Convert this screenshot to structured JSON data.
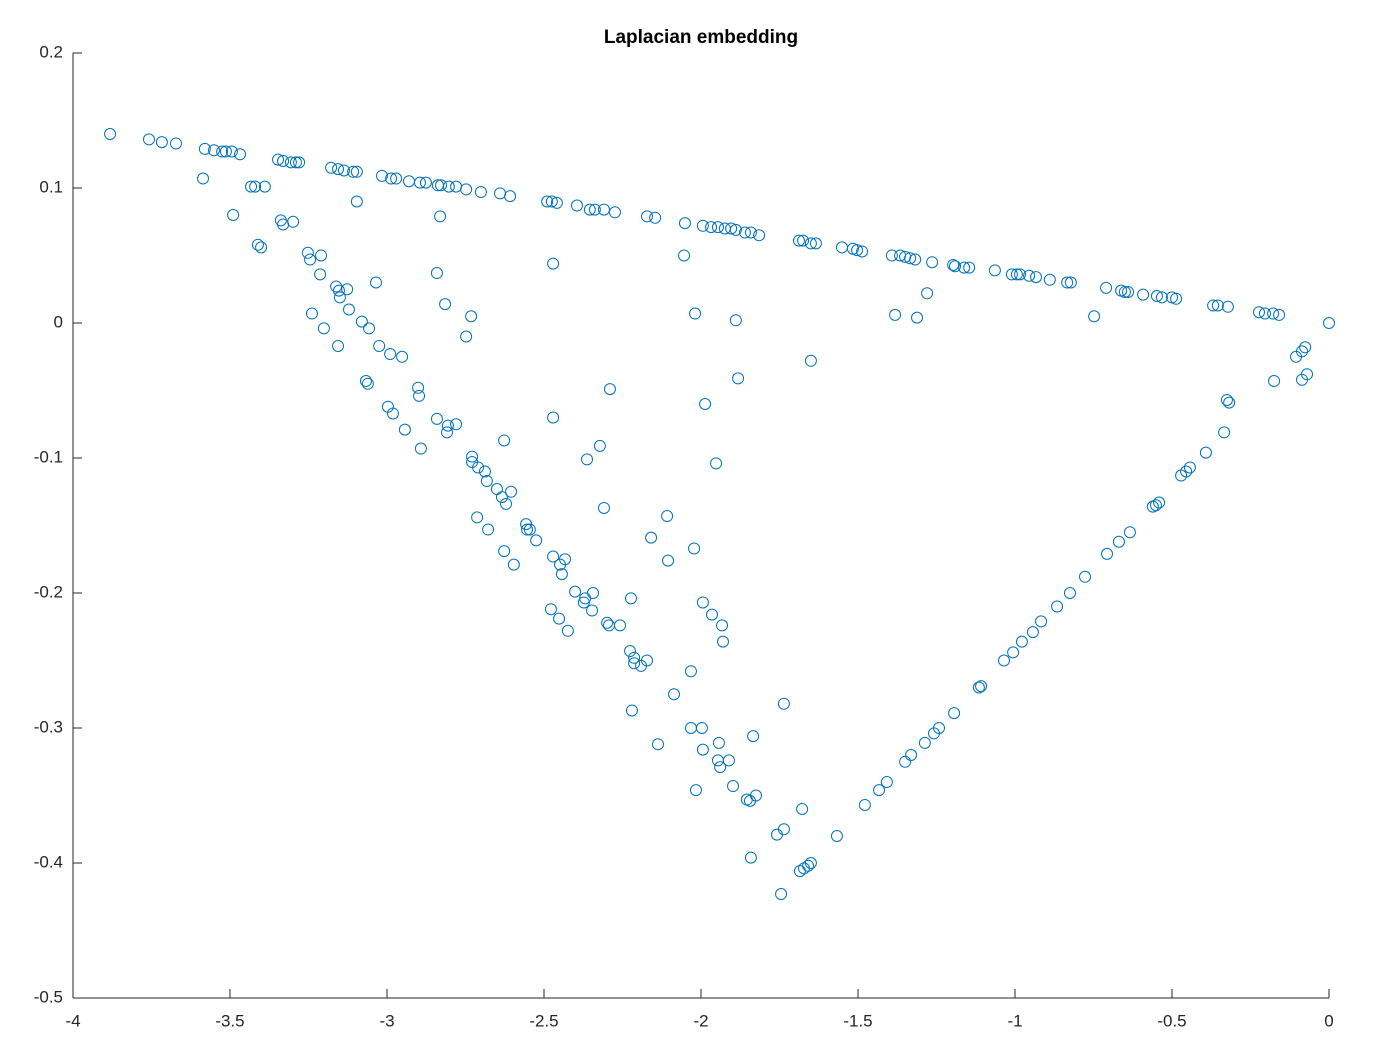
{
  "chart_data": {
    "type": "scatter",
    "title": "Laplacian embedding",
    "color": "#0072BD",
    "xlim": [
      -4,
      0
    ],
    "ylim": [
      -0.5,
      0.2
    ],
    "xticks": [
      -4,
      -3.5,
      -3,
      -2.5,
      -2,
      -1.5,
      -1,
      -0.5,
      0
    ],
    "yticks": [
      -0.5,
      -0.4,
      -0.3,
      -0.2,
      -0.1,
      0,
      0.1,
      0.2
    ],
    "x": [
      -3.882,
      -3.758,
      -3.717,
      -3.672,
      -3.58,
      -3.551,
      -3.525,
      -3.513,
      -3.494,
      -3.468,
      -3.347,
      -3.331,
      -3.306,
      -3.29,
      -3.28,
      -3.178,
      -3.156,
      -3.137,
      -3.108,
      -3.096,
      -3.016,
      -2.987,
      -2.971,
      -2.93,
      -2.895,
      -2.876,
      -2.838,
      -2.828,
      -2.803,
      -2.78,
      -2.748,
      -2.701,
      -2.64,
      -2.608,
      -2.49,
      -2.475,
      -2.459,
      -2.395,
      -2.354,
      -2.338,
      -2.309,
      -2.274,
      -2.172,
      -2.146,
      -2.051,
      -1.994,
      -1.968,
      -1.946,
      -1.924,
      -1.904,
      -1.889,
      -1.86,
      -1.841,
      -1.815,
      -1.688,
      -1.675,
      -1.65,
      -1.634,
      -1.551,
      -1.516,
      -1.503,
      -1.487,
      -1.392,
      -1.366,
      -1.35,
      -1.334,
      -1.318,
      -1.264,
      -1.197,
      -1.191,
      -1.162,
      -1.146,
      -1.064,
      -1.01,
      -0.994,
      -0.984,
      -0.955,
      -0.933,
      -0.889,
      -0.834,
      -0.822,
      -0.71,
      -0.662,
      -0.65,
      -0.64,
      -0.592,
      -0.548,
      -0.532,
      -0.5,
      -0.487,
      -0.369,
      -0.354,
      -0.322,
      -0.223,
      -0.204,
      -0.178,
      -0.159,
      0,
      -0.076,
      -0.086,
      -0.105,
      -0.07,
      -0.086,
      -0.175,
      -0.325,
      -0.318,
      -0.334,
      -0.392,
      -0.443,
      -0.455,
      -0.471,
      -0.541,
      -0.551,
      -0.561,
      -0.634,
      -0.669,
      -0.707,
      -0.777,
      -0.825,
      -0.866,
      -0.917,
      -0.943,
      -0.978,
      -1.006,
      -1.035,
      -1.108,
      -1.115,
      -1.194,
      -1.242,
      -1.258,
      -1.287,
      -1.331,
      -1.35,
      -1.408,
      -1.433,
      -1.478,
      -1.567,
      -1.65,
      -1.659,
      -1.672,
      -1.685,
      -1.745,
      -3.586,
      -3.49,
      -3.433,
      -3.42,
      -3.389,
      -3.338,
      -3.331,
      -3.299,
      -3.411,
      -3.401,
      -3.096,
      -3.252,
      -3.245,
      -3.21,
      -3.213,
      -3.162,
      -3.153,
      -3.15,
      -3.127,
      -3.239,
      -3.201,
      -3.121,
      -3.156,
      -3.08,
      -3.057,
      -3.035,
      -3.025,
      -2.99,
      -2.952,
      -3.067,
      -3.061,
      -2.997,
      -2.981,
      -2.943,
      -2.901,
      -2.898,
      -2.892,
      -2.841,
      -2.806,
      -2.809,
      -2.78,
      -2.815,
      -2.841,
      -2.831,
      -2.732,
      -2.748,
      -2.729,
      -2.729,
      -2.71,
      -2.688,
      -2.682,
      -2.713,
      -2.678,
      -2.65,
      -2.634,
      -2.627,
      -2.621,
      -2.605,
      -2.627,
      -2.596,
      -2.557,
      -2.554,
      -2.545,
      -2.525,
      -2.471,
      -2.471,
      -2.471,
      -2.449,
      -2.433,
      -2.443,
      -2.478,
      -2.452,
      -2.424,
      -2.401,
      -2.373,
      -2.369,
      -2.344,
      -2.347,
      -2.363,
      -2.322,
      -2.309,
      -2.29,
      -2.299,
      -2.293,
      -2.258,
      -2.223,
      -2.226,
      -2.213,
      -2.213,
      -2.191,
      -2.172,
      -2.22,
      -2.137,
      -2.159,
      -2.108,
      -2.105,
      -2.086,
      -2.019,
      -2.054,
      -2.032,
      -2.032,
      -2.016,
      -2.022,
      -1.994,
      -1.987,
      -1.997,
      -1.994,
      -1.952,
      -1.965,
      -1.943,
      -1.933,
      -1.93,
      -1.946,
      -1.939,
      -1.911,
      -1.898,
      -1.854,
      -1.844,
      -1.825,
      -1.841,
      -1.834,
      -1.889,
      -1.882,
      -1.736,
      -1.736,
      -1.758,
      -1.65,
      -1.678,
      -1.382,
      -1.312,
      -1.28,
      -0.748
    ],
    "y": [
      0.14,
      0.136,
      0.134,
      0.133,
      0.129,
      0.128,
      0.127,
      0.127,
      0.127,
      0.125,
      0.121,
      0.12,
      0.119,
      0.119,
      0.119,
      0.115,
      0.114,
      0.113,
      0.112,
      0.112,
      0.109,
      0.107,
      0.107,
      0.105,
      0.104,
      0.104,
      0.102,
      0.102,
      0.101,
      0.101,
      0.099,
      0.097,
      0.096,
      0.094,
      0.09,
      0.09,
      0.089,
      0.087,
      0.084,
      0.084,
      0.084,
      0.082,
      0.079,
      0.078,
      0.074,
      0.072,
      0.071,
      0.071,
      0.07,
      0.07,
      0.069,
      0.067,
      0.067,
      0.065,
      0.061,
      0.061,
      0.059,
      0.059,
      0.056,
      0.055,
      0.054,
      0.053,
      0.05,
      0.05,
      0.049,
      0.048,
      0.047,
      0.045,
      0.043,
      0.042,
      0.041,
      0.041,
      0.039,
      0.036,
      0.036,
      0.036,
      0.035,
      0.034,
      0.032,
      0.03,
      0.03,
      0.026,
      0.024,
      0.023,
      0.023,
      0.021,
      0.02,
      0.019,
      0.019,
      0.018,
      0.013,
      0.013,
      0.012,
      0.008,
      0.007,
      0.007,
      0.006,
      0,
      -0.018,
      -0.021,
      -0.025,
      -0.038,
      -0.042,
      -0.043,
      -0.057,
      -0.059,
      -0.081,
      -0.096,
      -0.107,
      -0.11,
      -0.113,
      -0.133,
      -0.135,
      -0.136,
      -0.155,
      -0.162,
      -0.171,
      -0.188,
      -0.2,
      -0.21,
      -0.221,
      -0.229,
      -0.236,
      -0.244,
      -0.25,
      -0.269,
      -0.27,
      -0.289,
      -0.3,
      -0.304,
      -0.311,
      -0.32,
      -0.325,
      -0.34,
      -0.346,
      -0.357,
      -0.38,
      -0.4,
      -0.402,
      -0.404,
      -0.406,
      -0.423,
      0.107,
      0.08,
      0.101,
      0.101,
      0.101,
      0.076,
      0.073,
      0.075,
      0.058,
      0.056,
      0.09,
      0.052,
      0.047,
      0.05,
      0.036,
      0.027,
      0.024,
      0.019,
      0.025,
      0.007,
      -0.004,
      0.01,
      -0.017,
      0.001,
      -0.004,
      0.03,
      -0.017,
      -0.023,
      -0.025,
      -0.043,
      -0.045,
      -0.062,
      -0.067,
      -0.079,
      -0.048,
      -0.054,
      -0.093,
      -0.071,
      -0.076,
      -0.081,
      -0.075,
      0.014,
      0.037,
      0.079,
      0.005,
      -0.01,
      -0.099,
      -0.103,
      -0.107,
      -0.11,
      -0.117,
      -0.144,
      -0.153,
      -0.123,
      -0.129,
      -0.087,
      -0.134,
      -0.125,
      -0.169,
      -0.179,
      -0.149,
      -0.153,
      -0.153,
      -0.161,
      0.044,
      -0.07,
      -0.173,
      -0.179,
      -0.175,
      -0.186,
      -0.212,
      -0.219,
      -0.228,
      -0.199,
      -0.207,
      -0.204,
      -0.2,
      -0.213,
      -0.101,
      -0.091,
      -0.137,
      -0.049,
      -0.222,
      -0.224,
      -0.224,
      -0.204,
      -0.243,
      -0.248,
      -0.252,
      -0.254,
      -0.25,
      -0.287,
      -0.312,
      -0.159,
      -0.143,
      -0.176,
      -0.275,
      0.007,
      0.05,
      -0.258,
      -0.3,
      -0.346,
      -0.167,
      -0.207,
      -0.06,
      -0.3,
      -0.316,
      -0.104,
      -0.216,
      -0.311,
      -0.224,
      -0.236,
      -0.324,
      -0.329,
      -0.324,
      -0.343,
      -0.353,
      -0.354,
      -0.35,
      -0.396,
      -0.306,
      0.002,
      -0.041,
      -0.282,
      -0.375,
      -0.379,
      -0.028,
      -0.36,
      0.006,
      0.004,
      0.022,
      0.005
    ]
  }
}
